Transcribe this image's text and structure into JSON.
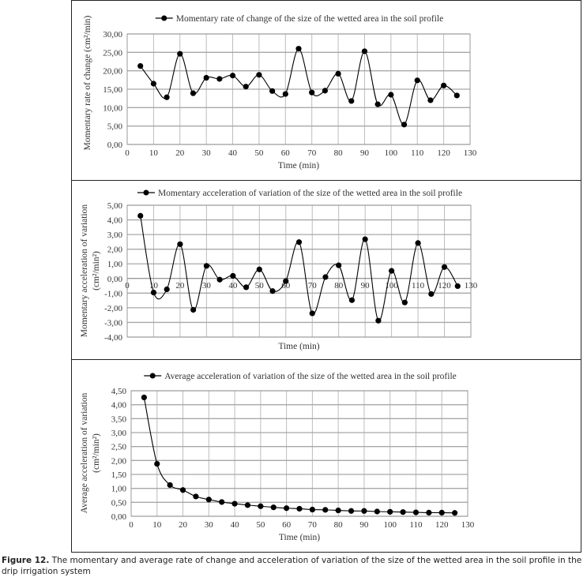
{
  "chart_data": [
    {
      "type": "line",
      "legend": "Momentary rate of change of the size of the wetted area in the soil profile",
      "xlabel": "Time (min)",
      "ylabel": "Momentary rate of change (cm²/min)",
      "ylabel2": "",
      "xlim": [
        0,
        130
      ],
      "ylim": [
        0,
        30
      ],
      "xticks": [
        0,
        10,
        20,
        30,
        40,
        50,
        60,
        70,
        80,
        90,
        100,
        110,
        120,
        130
      ],
      "yticks": [
        0,
        5,
        10,
        15,
        20,
        25,
        30
      ],
      "ytick_labels": [
        "0,00",
        "5,00",
        "10,00",
        "15,00",
        "20,00",
        "25,00",
        "30,00"
      ],
      "x": [
        5,
        10,
        15,
        20,
        25,
        30,
        35,
        40,
        45,
        50,
        55,
        60,
        65,
        70,
        75,
        80,
        85,
        90,
        95,
        100,
        105,
        110,
        115,
        120,
        125
      ],
      "y": [
        21.3,
        16.5,
        12.8,
        24.6,
        13.9,
        18.1,
        17.8,
        18.7,
        15.7,
        18.9,
        14.5,
        13.7,
        26.0,
        14.1,
        14.6,
        19.2,
        11.8,
        25.3,
        10.9,
        13.5,
        5.4,
        17.4,
        12.0,
        16.0,
        13.3
      ],
      "grid": true,
      "legend_position": "top"
    },
    {
      "type": "line",
      "legend": "Momentary acceleration of variation of the size of the wetted area in the soil profile",
      "xlabel": "Time (min)",
      "ylabel": "Momentary acceleration of variation",
      "ylabel2": "(cm²/min²)",
      "xlim": [
        0,
        130
      ],
      "ylim": [
        -4,
        5
      ],
      "xticks": [
        0,
        10,
        20,
        30,
        40,
        50,
        60,
        70,
        80,
        90,
        100,
        110,
        120,
        130
      ],
      "yticks": [
        -4,
        -3,
        -2,
        -1,
        0,
        1,
        2,
        3,
        4,
        5
      ],
      "ytick_labels": [
        "-4,00",
        "-3,00",
        "-2,00",
        "-1,00",
        "0,00",
        "1,00",
        "2,00",
        "3,00",
        "4,00",
        "5,00"
      ],
      "x": [
        5,
        10,
        15,
        20,
        25,
        30,
        35,
        40,
        45,
        50,
        55,
        60,
        65,
        70,
        75,
        80,
        85,
        90,
        95,
        100,
        105,
        110,
        115,
        120,
        125
      ],
      "y": [
        4.28,
        -0.96,
        -0.74,
        2.34,
        -2.14,
        0.86,
        -0.08,
        0.18,
        -0.6,
        0.62,
        -0.86,
        -0.18,
        2.48,
        -2.38,
        0.1,
        0.9,
        -1.48,
        2.68,
        -2.88,
        0.52,
        -1.64,
        2.42,
        -1.06,
        0.78,
        -0.52
      ],
      "grid": true,
      "legend_position": "top"
    },
    {
      "type": "line",
      "legend": "Average acceleration of variation of the size of the wetted area in the soil profile",
      "xlabel": "Time (min)",
      "ylabel": "Average acceleration of variation",
      "ylabel2": "(cm²/min²)",
      "xlim": [
        0,
        130
      ],
      "ylim": [
        0,
        4.5
      ],
      "xticks": [
        0,
        10,
        20,
        30,
        40,
        50,
        60,
        70,
        80,
        90,
        100,
        110,
        120,
        130
      ],
      "yticks": [
        0,
        0.5,
        1,
        1.5,
        2,
        2.5,
        3,
        3.5,
        4,
        4.5
      ],
      "ytick_labels": [
        "0,00",
        "0,50",
        "1,00",
        "1,50",
        "2,00",
        "2,50",
        "3,00",
        "3,50",
        "4,00",
        "4,50"
      ],
      "x": [
        5,
        10,
        15,
        20,
        25,
        30,
        35,
        40,
        45,
        50,
        55,
        60,
        65,
        70,
        75,
        80,
        85,
        90,
        95,
        100,
        105,
        110,
        115,
        120,
        125
      ],
      "y": [
        4.26,
        1.88,
        1.12,
        0.94,
        0.71,
        0.6,
        0.51,
        0.45,
        0.4,
        0.36,
        0.32,
        0.29,
        0.27,
        0.24,
        0.23,
        0.21,
        0.19,
        0.19,
        0.17,
        0.16,
        0.15,
        0.14,
        0.13,
        0.13,
        0.12
      ],
      "grid": true,
      "legend_position": "top"
    }
  ],
  "caption": {
    "label": "Figure 12.",
    "text": " The momentary and average rate of change and acceleration of variation of the size of the wetted area in the soil profile in the drip irrigation system"
  }
}
